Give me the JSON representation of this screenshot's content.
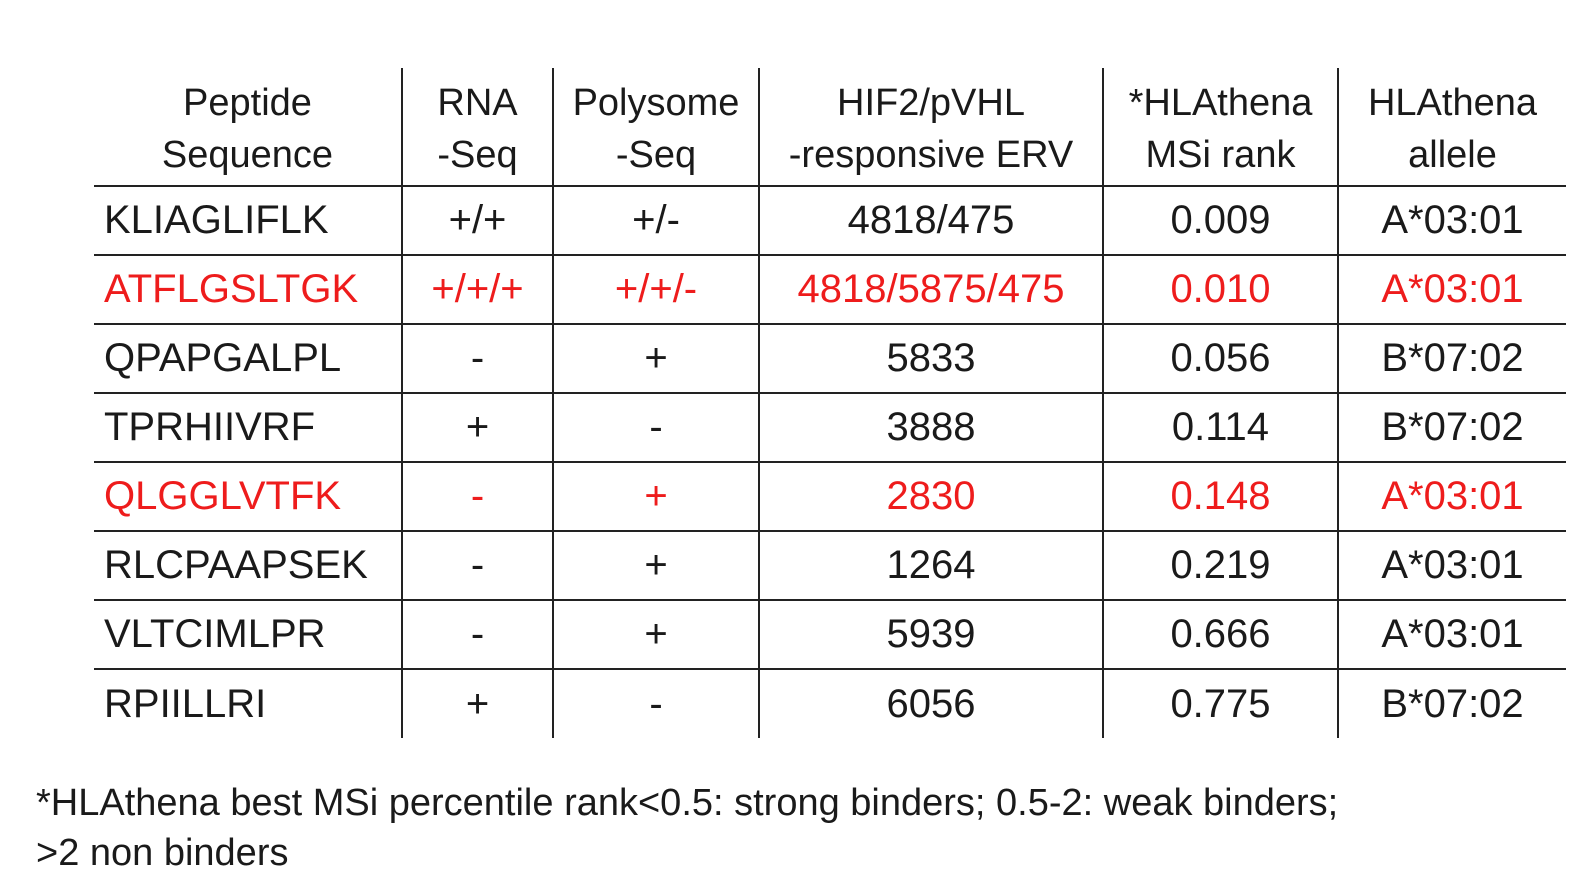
{
  "table": {
    "headers": [
      {
        "line1": "Peptide",
        "line2": "Sequence"
      },
      {
        "line1": "RNA",
        "line2": "-Seq"
      },
      {
        "line1": "Polysome",
        "line2": "-Seq"
      },
      {
        "line1": "HIF2/pVHL",
        "line2": "-responsive ERV"
      },
      {
        "line1": "*HLAthena",
        "line2": "MSi rank"
      },
      {
        "line1": "HLAthena",
        "line2": "allele"
      }
    ],
    "rows": [
      {
        "cells": [
          "KLIAGLIFLK",
          "+/+",
          "+/-",
          "4818/475",
          "0.009",
          "A*03:01"
        ],
        "highlight": false
      },
      {
        "cells": [
          "ATFLGSLTGK",
          "+/+/+",
          "+/+/-",
          "4818/5875/475",
          "0.010",
          "A*03:01"
        ],
        "highlight": true
      },
      {
        "cells": [
          "QPAPGALPL",
          "-",
          "+",
          "5833",
          "0.056",
          "B*07:02"
        ],
        "highlight": false
      },
      {
        "cells": [
          "TPRHIIVRF",
          "+",
          "-",
          "3888",
          "0.114",
          "B*07:02"
        ],
        "highlight": false
      },
      {
        "cells": [
          "QLGGLVTFK",
          "-",
          "+",
          "2830",
          "0.148",
          "A*03:01"
        ],
        "highlight": true
      },
      {
        "cells": [
          "RLCPAAPSEK",
          "-",
          "+",
          "1264",
          "0.219",
          "A*03:01"
        ],
        "highlight": false
      },
      {
        "cells": [
          "VLTCIMLPR",
          "-",
          "+",
          "5939",
          "0.666",
          "A*03:01"
        ],
        "highlight": false
      },
      {
        "cells": [
          "RPIILLRI",
          "+",
          "-",
          "6056",
          "0.775",
          "B*07:02"
        ],
        "highlight": false
      }
    ],
    "highlight_color": "#ee1c1c"
  },
  "footnote": {
    "line1": "*HLAthena best MSi percentile rank<0.5: strong binders; 0.5-2: weak binders;",
    "line2": ">2 non binders"
  }
}
